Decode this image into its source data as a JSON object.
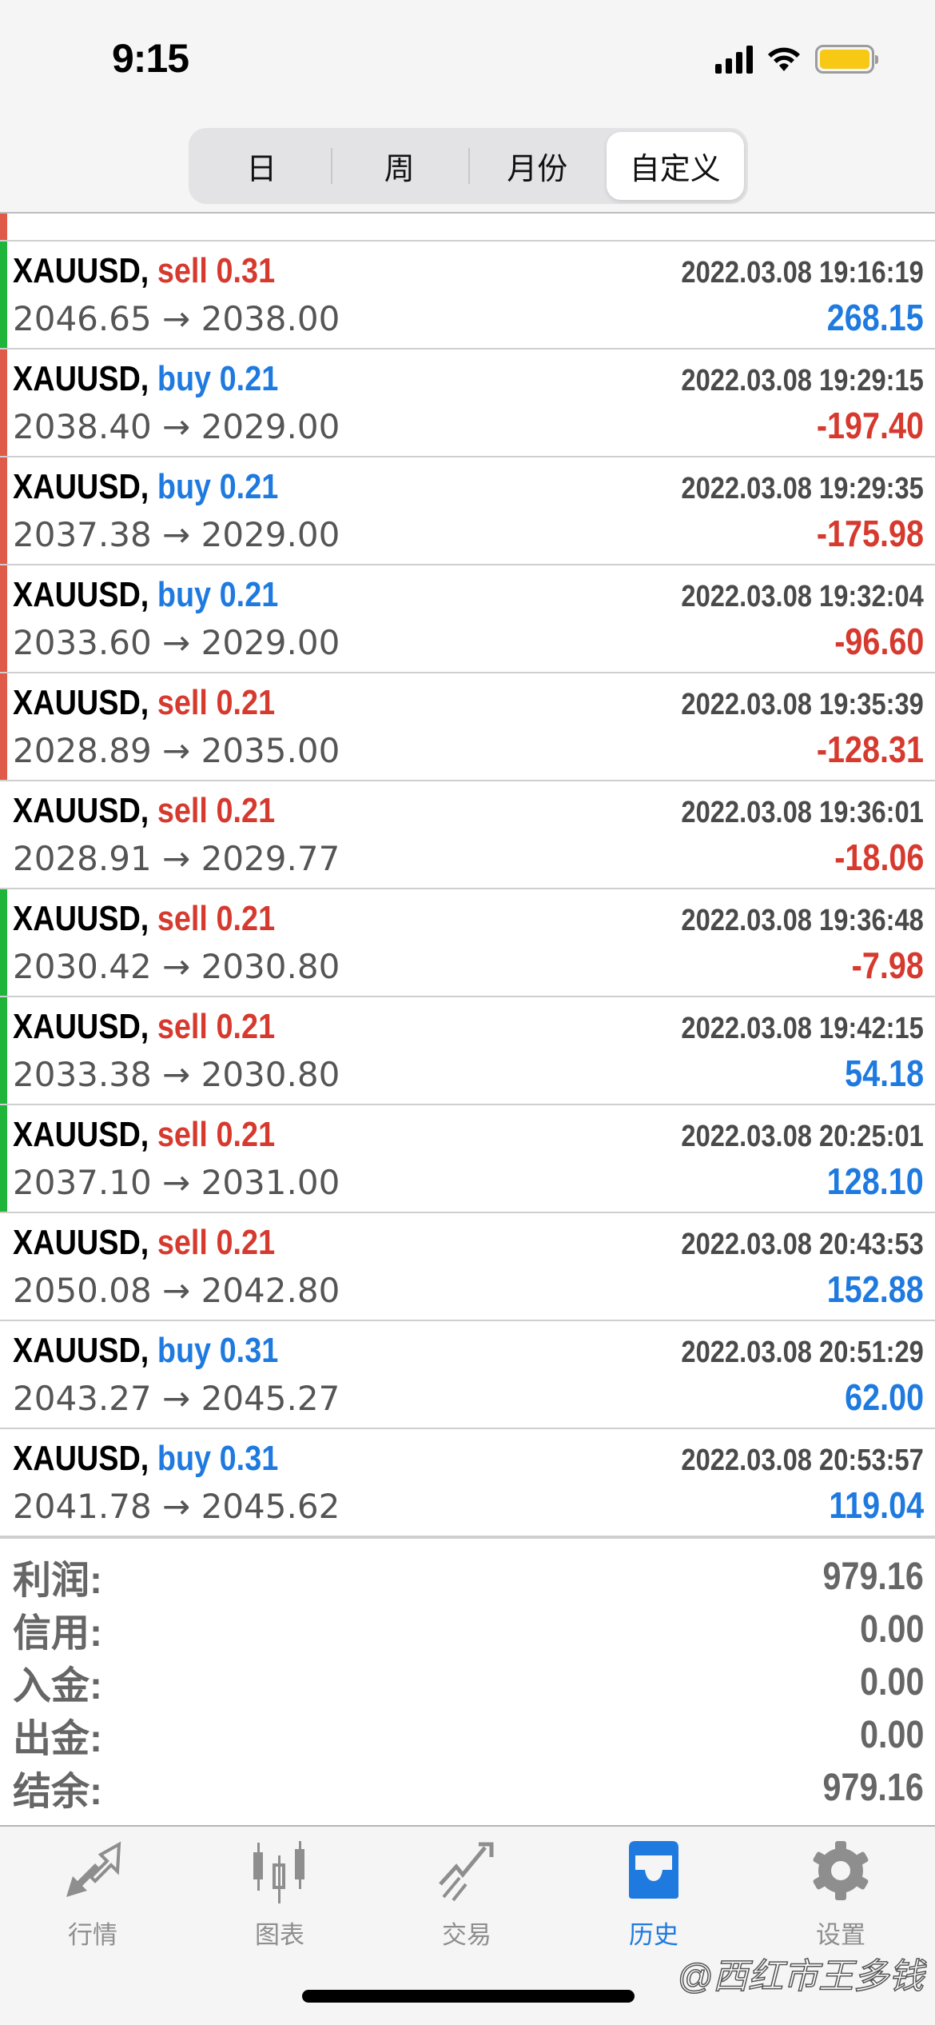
{
  "status_bar": {
    "time": "9:15"
  },
  "segments": [
    {
      "label": "日",
      "active": false
    },
    {
      "label": "周",
      "active": false
    },
    {
      "label": "月份",
      "active": false
    },
    {
      "label": "自定义",
      "active": true
    }
  ],
  "colors": {
    "sell": "#d63a2f",
    "buy": "#1f7ae0",
    "profit_positive": "#1f7ae0",
    "profit_negative": "#d63a2f",
    "bar_red": "#e05a4a",
    "bar_green": "#1fb53a"
  },
  "trades": [
    {
      "symbol": "XAUUSD,",
      "side": "sell",
      "volume": "0.31",
      "time": "2022.03.08 19:16:19",
      "open": "2046.65",
      "close": "2038.00",
      "profit": "268.15",
      "bar": "green"
    },
    {
      "symbol": "XAUUSD,",
      "side": "buy",
      "volume": "0.21",
      "time": "2022.03.08 19:29:15",
      "open": "2038.40",
      "close": "2029.00",
      "profit": "-197.40",
      "bar": "red"
    },
    {
      "symbol": "XAUUSD,",
      "side": "buy",
      "volume": "0.21",
      "time": "2022.03.08 19:29:35",
      "open": "2037.38",
      "close": "2029.00",
      "profit": "-175.98",
      "bar": "red"
    },
    {
      "symbol": "XAUUSD,",
      "side": "buy",
      "volume": "0.21",
      "time": "2022.03.08 19:32:04",
      "open": "2033.60",
      "close": "2029.00",
      "profit": "-96.60",
      "bar": "red"
    },
    {
      "symbol": "XAUUSD,",
      "side": "sell",
      "volume": "0.21",
      "time": "2022.03.08 19:35:39",
      "open": "2028.89",
      "close": "2035.00",
      "profit": "-128.31",
      "bar": "red"
    },
    {
      "symbol": "XAUUSD,",
      "side": "sell",
      "volume": "0.21",
      "time": "2022.03.08 19:36:01",
      "open": "2028.91",
      "close": "2029.77",
      "profit": "-18.06",
      "bar": "none"
    },
    {
      "symbol": "XAUUSD,",
      "side": "sell",
      "volume": "0.21",
      "time": "2022.03.08 19:36:48",
      "open": "2030.42",
      "close": "2030.80",
      "profit": "-7.98",
      "bar": "green"
    },
    {
      "symbol": "XAUUSD,",
      "side": "sell",
      "volume": "0.21",
      "time": "2022.03.08 19:42:15",
      "open": "2033.38",
      "close": "2030.80",
      "profit": "54.18",
      "bar": "green"
    },
    {
      "symbol": "XAUUSD,",
      "side": "sell",
      "volume": "0.21",
      "time": "2022.03.08 20:25:01",
      "open": "2037.10",
      "close": "2031.00",
      "profit": "128.10",
      "bar": "green"
    },
    {
      "symbol": "XAUUSD,",
      "side": "sell",
      "volume": "0.21",
      "time": "2022.03.08 20:43:53",
      "open": "2050.08",
      "close": "2042.80",
      "profit": "152.88",
      "bar": "none"
    },
    {
      "symbol": "XAUUSD,",
      "side": "buy",
      "volume": "0.31",
      "time": "2022.03.08 20:51:29",
      "open": "2043.27",
      "close": "2045.27",
      "profit": "62.00",
      "bar": "none"
    },
    {
      "symbol": "XAUUSD,",
      "side": "buy",
      "volume": "0.31",
      "time": "2022.03.08 20:53:57",
      "open": "2041.78",
      "close": "2045.62",
      "profit": "119.04",
      "bar": "none"
    }
  ],
  "arrow": "→",
  "summary": [
    {
      "label": "利润:",
      "value": "979.16"
    },
    {
      "label": "信用:",
      "value": "0.00"
    },
    {
      "label": "入金:",
      "value": "0.00"
    },
    {
      "label": "出金:",
      "value": "0.00"
    },
    {
      "label": "结余:",
      "value": "979.16"
    }
  ],
  "tabs": [
    {
      "label": "行情",
      "icon": "quotes-arrows-icon",
      "active": false
    },
    {
      "label": "图表",
      "icon": "candlestick-chart-icon",
      "active": false
    },
    {
      "label": "交易",
      "icon": "trade-trend-icon",
      "active": false
    },
    {
      "label": "历史",
      "icon": "history-inbox-icon",
      "active": true
    },
    {
      "label": "设置",
      "icon": "gear-icon",
      "active": false
    }
  ],
  "watermark": "@西红市王多钱"
}
